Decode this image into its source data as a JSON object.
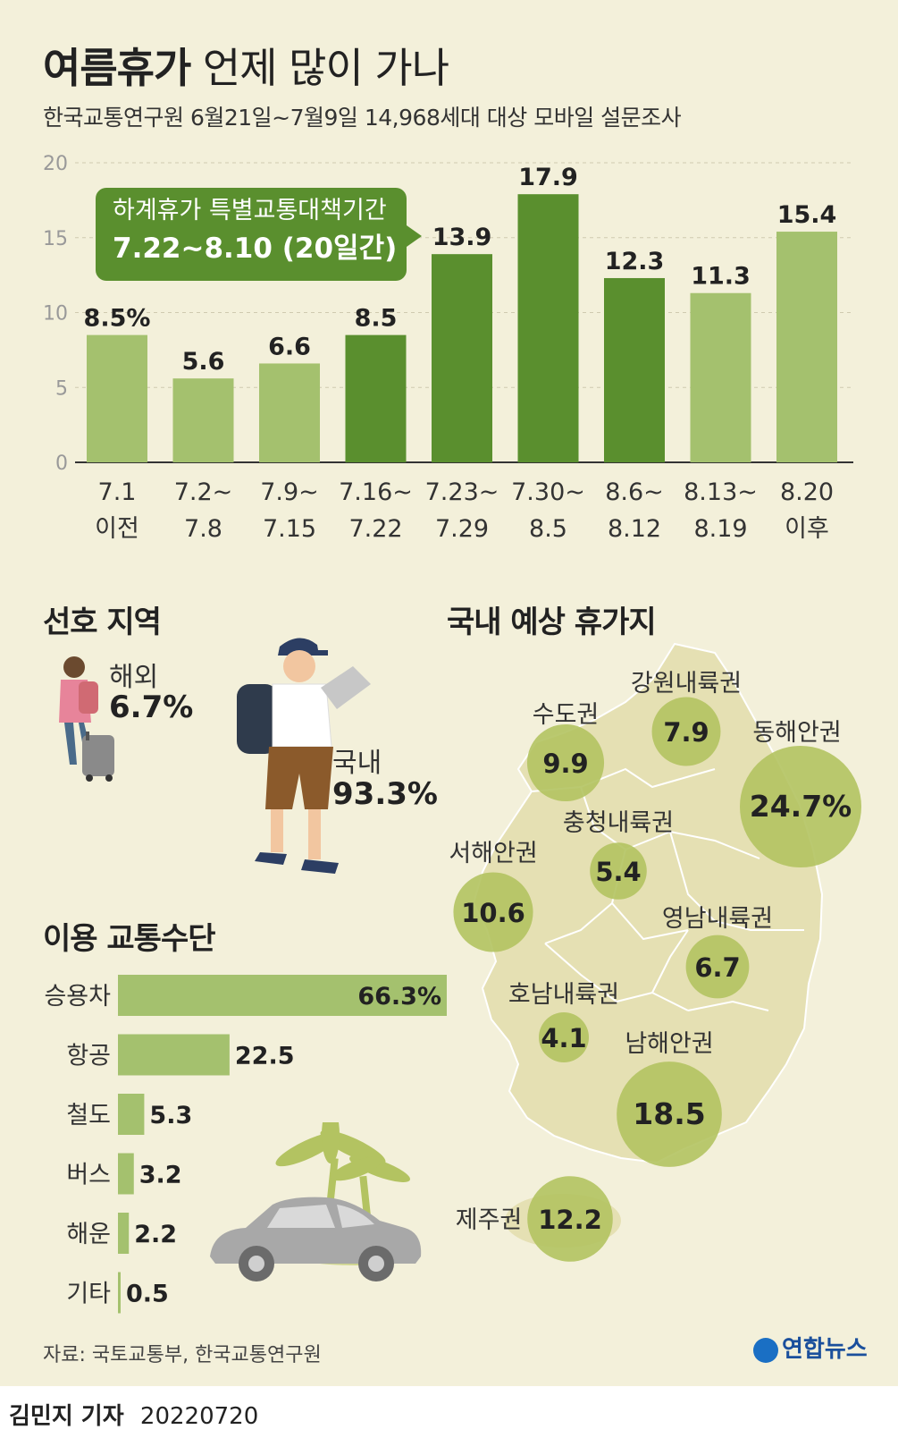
{
  "header": {
    "title_bold": "여름휴가",
    "title_light": "언제 많이 가나",
    "subtitle": "한국교통연구원 6월21일~7월9일 14,968세대 대상 모바일 설문조사"
  },
  "callout": {
    "line1": "하계휴가 특별교통대책기간",
    "line2": "7.22~8.10 (20일간)"
  },
  "colors": {
    "background": "#f3f0da",
    "bar_light": "#a4c16e",
    "bar_dark": "#5a8f2e",
    "callout": "#5a8f2e",
    "bubble": "#b3c361",
    "map_land": "#e5e0b3"
  },
  "chart_data": [
    {
      "type": "bar",
      "ylim": [
        0,
        20
      ],
      "yticks": [
        0,
        5,
        10,
        15,
        20
      ],
      "grid": true,
      "categories": [
        "7.1 이전",
        "7.2~ 7.8",
        "7.9~ 7.15",
        "7.16~ 7.22",
        "7.23~ 7.29",
        "7.30~ 8.5",
        "8.6~ 8.12",
        "8.13~ 8.19",
        "8.20 이후"
      ],
      "category_lines": [
        [
          "7.1",
          "이전"
        ],
        [
          "7.2~",
          "7.8"
        ],
        [
          "7.9~",
          "7.15"
        ],
        [
          "7.16~",
          "7.22"
        ],
        [
          "7.23~",
          "7.29"
        ],
        [
          "7.30~",
          "8.5"
        ],
        [
          "8.6~",
          "8.12"
        ],
        [
          "8.13~",
          "8.19"
        ],
        [
          "8.20",
          "이후"
        ]
      ],
      "values": [
        8.5,
        5.6,
        6.6,
        8.5,
        13.9,
        17.9,
        12.3,
        11.3,
        15.4
      ],
      "value_labels": [
        "8.5%",
        "5.6",
        "6.6",
        "8.5",
        "13.9",
        "17.9",
        "12.3",
        "11.3",
        "15.4"
      ],
      "highlighted": [
        false,
        false,
        false,
        true,
        true,
        true,
        true,
        false,
        false
      ]
    },
    {
      "type": "bar",
      "orientation": "horizontal",
      "title": "이용 교통수단",
      "categories": [
        "승용차",
        "항공",
        "철도",
        "버스",
        "해운",
        "기타"
      ],
      "values": [
        66.3,
        22.5,
        5.3,
        3.2,
        2.2,
        0.5
      ],
      "value_labels": [
        "66.3%",
        "22.5",
        "5.3",
        "3.2",
        "2.2",
        "0.5"
      ]
    },
    {
      "type": "scatter",
      "title": "국내 예상 휴가지",
      "regions": [
        {
          "name": "강원내륙권",
          "value": 7.9,
          "label": "7.9"
        },
        {
          "name": "수도권",
          "value": 9.9,
          "label": "9.9"
        },
        {
          "name": "동해안권",
          "value": 24.7,
          "label": "24.7%"
        },
        {
          "name": "충청내륙권",
          "value": 5.4,
          "label": "5.4"
        },
        {
          "name": "서해안권",
          "value": 10.6,
          "label": "10.6"
        },
        {
          "name": "영남내륙권",
          "value": 6.7,
          "label": "6.7"
        },
        {
          "name": "호남내륙권",
          "value": 4.1,
          "label": "4.1"
        },
        {
          "name": "남해안권",
          "value": 18.5,
          "label": "18.5"
        },
        {
          "name": "제주권",
          "value": 12.2,
          "label": "12.2"
        }
      ]
    }
  ],
  "preference": {
    "title": "선호 지역",
    "overseas_label": "해외",
    "overseas_value": "6.7%",
    "domestic_label": "국내",
    "domestic_value": "93.3%"
  },
  "source": "자료: 국토교통부, 한국교통연구원",
  "logo_text": "연합뉴스",
  "footer": {
    "byline": "김민지 기자",
    "date": "20220720"
  }
}
